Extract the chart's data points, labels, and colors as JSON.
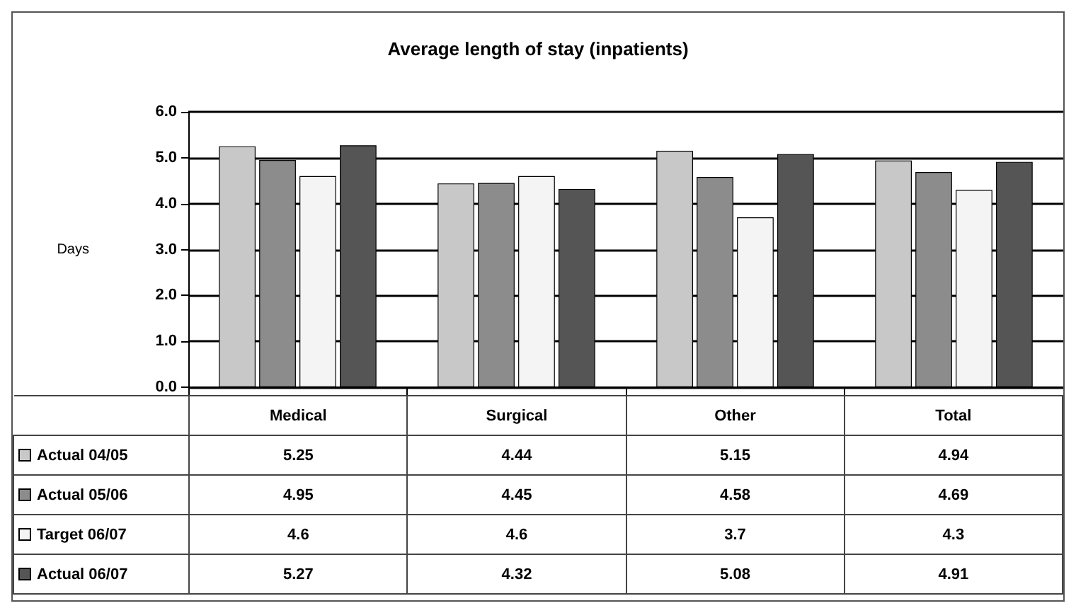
{
  "chart_data": {
    "type": "bar",
    "title": "Average length of stay (inpatients)",
    "ylabel": "Days",
    "categories": [
      "Medical",
      "Surgical",
      "Other",
      "Total"
    ],
    "series": [
      {
        "name": "Actual 04/05",
        "color": "#c8c8c8",
        "values": [
          5.25,
          4.44,
          5.15,
          4.94
        ]
      },
      {
        "name": "Actual 05/06",
        "color": "#8c8c8c",
        "values": [
          4.95,
          4.45,
          4.58,
          4.69
        ]
      },
      {
        "name": "Target 06/07",
        "color": "#f4f4f4",
        "values": [
          4.6,
          4.6,
          3.7,
          4.3
        ]
      },
      {
        "name": "Actual 06/07",
        "color": "#555555",
        "values": [
          5.27,
          4.32,
          5.08,
          4.91
        ]
      }
    ],
    "ylim": [
      0,
      6
    ],
    "yticks": [
      {
        "value": 0,
        "label": "0.0"
      },
      {
        "value": 1,
        "label": "1.0"
      },
      {
        "value": 2,
        "label": "2.0"
      },
      {
        "value": 3,
        "label": "3.0"
      },
      {
        "value": 4,
        "label": "4.0"
      },
      {
        "value": 5,
        "label": "5.0"
      },
      {
        "value": 6,
        "label": "6.0"
      }
    ],
    "grid": "y",
    "legend": "bottom",
    "data_labels": true
  }
}
